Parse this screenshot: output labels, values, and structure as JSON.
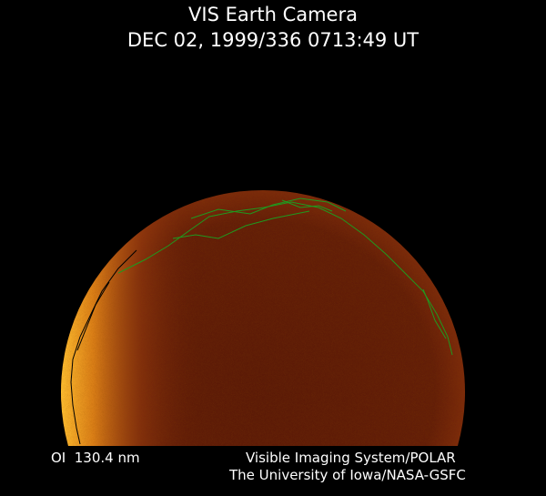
{
  "header": {
    "title": "VIS Earth Camera",
    "timestamp": "DEC 02, 1999/336 0713:49 UT"
  },
  "footer": {
    "filter": "OI  130.4 nm",
    "instrument": "Visible Imaging System/POLAR",
    "institution": "The University of Iowa/NASA-GSFC"
  },
  "colors": {
    "background": "#000000",
    "disk_dark": "#5a1a06",
    "limb_bright": "#f0a020",
    "coastline": "#1f9a1f",
    "coastline_dark": "#000000"
  }
}
